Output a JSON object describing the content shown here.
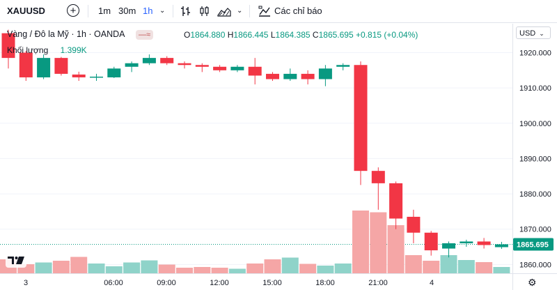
{
  "toolbar": {
    "symbol": "XAUUSD",
    "intervals": [
      "1m",
      "30m",
      "1h"
    ],
    "active_interval": "1h",
    "indicators_label": "Các chỉ báo",
    "icons": [
      "plus-circle-icon",
      "chevron-down-icon",
      "bar-style-icon",
      "candle-style-icon",
      "area-style-icon",
      "chevron-down-icon",
      "indicators-icon"
    ]
  },
  "legend": {
    "title": "Vàng / Đô la Mỹ · 1h · OANDA",
    "o_label": "O",
    "o_value": "1864.880",
    "h_label": "H",
    "h_value": "1866.445",
    "l_label": "L",
    "l_value": "1864.385",
    "c_label": "C",
    "c_value": "1865.695",
    "change": "+0.815 (+0.04%)",
    "volume_label": "Khối lượng",
    "volume_value": "1.399K"
  },
  "currency": "USD",
  "colors": {
    "up": "#089981",
    "down": "#f23645",
    "vol_up": "#8fd3c9",
    "vol_down": "#f5a6a6"
  },
  "chart_data": {
    "type": "candlestick",
    "price_ticks": [
      "1920.000",
      "1910.000",
      "1900.000",
      "1890.000",
      "1880.000",
      "1870.000",
      "1860.000"
    ],
    "ylim": [
      1857.5,
      1928.2
    ],
    "last_price": "1865.695",
    "time_ticks": [
      "3",
      "06:00",
      "09:00",
      "12:00",
      "15:00",
      "18:00",
      "21:00",
      "4"
    ],
    "candles": [
      {
        "o": 1925.5,
        "h": 1926.5,
        "l": 1915.5,
        "c": 1918.5,
        "v": 0.4
      },
      {
        "o": 1920.0,
        "h": 1920.5,
        "l": 1912.0,
        "c": 1913.0,
        "v": 0.26
      },
      {
        "o": 1913.0,
        "h": 1919.5,
        "l": 1912.5,
        "c": 1918.5,
        "v": 0.31
      },
      {
        "o": 1918.5,
        "h": 1918.8,
        "l": 1913.5,
        "c": 1914.0,
        "v": 0.36
      },
      {
        "o": 1913.8,
        "h": 1914.6,
        "l": 1912.0,
        "c": 1913.0,
        "v": 0.47
      },
      {
        "o": 1913.0,
        "h": 1914.0,
        "l": 1912.0,
        "c": 1913.2,
        "v": 0.28
      },
      {
        "o": 1913.0,
        "h": 1916.0,
        "l": 1912.8,
        "c": 1915.5,
        "v": 0.2
      },
      {
        "o": 1916.0,
        "h": 1917.5,
        "l": 1914.5,
        "c": 1917.0,
        "v": 0.31
      },
      {
        "o": 1917.0,
        "h": 1919.5,
        "l": 1916.5,
        "c": 1918.5,
        "v": 0.37
      },
      {
        "o": 1918.5,
        "h": 1919.0,
        "l": 1916.5,
        "c": 1917.0,
        "v": 0.25
      },
      {
        "o": 1917.0,
        "h": 1917.5,
        "l": 1915.5,
        "c": 1916.5,
        "v": 0.16
      },
      {
        "o": 1916.5,
        "h": 1917.0,
        "l": 1914.5,
        "c": 1916.0,
        "v": 0.18
      },
      {
        "o": 1916.0,
        "h": 1916.5,
        "l": 1914.5,
        "c": 1915.0,
        "v": 0.16
      },
      {
        "o": 1915.0,
        "h": 1916.5,
        "l": 1914.5,
        "c": 1916.0,
        "v": 0.13
      },
      {
        "o": 1916.0,
        "h": 1918.5,
        "l": 1911.0,
        "c": 1913.5,
        "v": 0.28
      },
      {
        "o": 1914.0,
        "h": 1914.5,
        "l": 1912.0,
        "c": 1912.5,
        "v": 0.4
      },
      {
        "o": 1912.5,
        "h": 1915.5,
        "l": 1912.0,
        "c": 1914.0,
        "v": 0.45
      },
      {
        "o": 1914.0,
        "h": 1915.0,
        "l": 1911.0,
        "c": 1912.5,
        "v": 0.27
      },
      {
        "o": 1912.5,
        "h": 1916.5,
        "l": 1910.5,
        "c": 1915.5,
        "v": 0.22
      },
      {
        "o": 1916.0,
        "h": 1917.0,
        "l": 1915.0,
        "c": 1916.5,
        "v": 0.28
      },
      {
        "o": 1916.5,
        "h": 1917.5,
        "l": 1882.5,
        "c": 1886.5,
        "v": 1.8
      },
      {
        "o": 1886.5,
        "h": 1887.5,
        "l": 1875.5,
        "c": 1883.0,
        "v": 1.75
      },
      {
        "o": 1883.0,
        "h": 1883.5,
        "l": 1870.0,
        "c": 1873.0,
        "v": 1.38
      },
      {
        "o": 1873.5,
        "h": 1875.5,
        "l": 1866.0,
        "c": 1869.0,
        "v": 0.52
      },
      {
        "o": 1869.0,
        "h": 1869.5,
        "l": 1862.5,
        "c": 1864.0,
        "v": 0.36
      },
      {
        "o": 1864.5,
        "h": 1866.5,
        "l": 1862.0,
        "c": 1866.0,
        "v": 0.52
      },
      {
        "o": 1866.0,
        "h": 1867.0,
        "l": 1865.0,
        "c": 1866.5,
        "v": 0.38
      },
      {
        "o": 1866.5,
        "h": 1867.5,
        "l": 1864.5,
        "c": 1865.5,
        "v": 0.32
      },
      {
        "o": 1864.9,
        "h": 1866.4,
        "l": 1864.4,
        "c": 1865.7,
        "v": 0.18
      }
    ]
  }
}
